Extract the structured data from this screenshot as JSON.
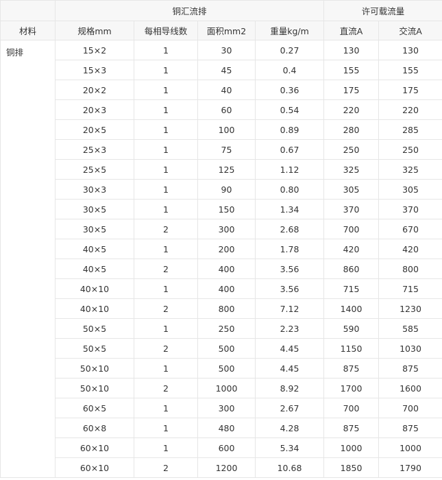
{
  "header": {
    "group1": "铜汇流排",
    "group2": "许可载流量",
    "columns": [
      "材料",
      "规格mm",
      "每相导线数",
      "面积mm2",
      "重量kg/m",
      "直流A",
      "交流A"
    ]
  },
  "material": "铜排",
  "rows": [
    [
      "15×2",
      "1",
      "30",
      "0.27",
      "130",
      "130"
    ],
    [
      "15×3",
      "1",
      "45",
      "0.4",
      "155",
      "155"
    ],
    [
      "20×2",
      "1",
      "40",
      "0.36",
      "175",
      "175"
    ],
    [
      "20×3",
      "1",
      "60",
      "0.54",
      "220",
      "220"
    ],
    [
      "20×5",
      "1",
      "100",
      "0.89",
      "280",
      "285"
    ],
    [
      "25×3",
      "1",
      "75",
      "0.67",
      "250",
      "250"
    ],
    [
      "25×5",
      "1",
      "125",
      "1.12",
      "325",
      "325"
    ],
    [
      "30×3",
      "1",
      "90",
      "0.80",
      "305",
      "305"
    ],
    [
      "30×5",
      "1",
      "150",
      "1.34",
      "370",
      "370"
    ],
    [
      "30×5",
      "2",
      "300",
      "2.68",
      "700",
      "670"
    ],
    [
      "40×5",
      "1",
      "200",
      "1.78",
      "420",
      "420"
    ],
    [
      "40×5",
      "2",
      "400",
      "3.56",
      "860",
      "800"
    ],
    [
      "40×10",
      "1",
      "400",
      "3.56",
      "715",
      "715"
    ],
    [
      "40×10",
      "2",
      "800",
      "7.12",
      "1400",
      "1230"
    ],
    [
      "50×5",
      "1",
      "250",
      "2.23",
      "590",
      "585"
    ],
    [
      "50×5",
      "2",
      "500",
      "4.45",
      "1150",
      "1030"
    ],
    [
      "50×10",
      "1",
      "500",
      "4.45",
      "875",
      "875"
    ],
    [
      "50×10",
      "2",
      "1000",
      "8.92",
      "1700",
      "1600"
    ],
    [
      "60×5",
      "1",
      "300",
      "2.67",
      "700",
      "700"
    ],
    [
      "60×8",
      "1",
      "480",
      "4.28",
      "875",
      "875"
    ],
    [
      "60×10",
      "1",
      "600",
      "5.34",
      "1000",
      "1000"
    ],
    [
      "60×10",
      "2",
      "1200",
      "10.68",
      "1850",
      "1790"
    ]
  ]
}
